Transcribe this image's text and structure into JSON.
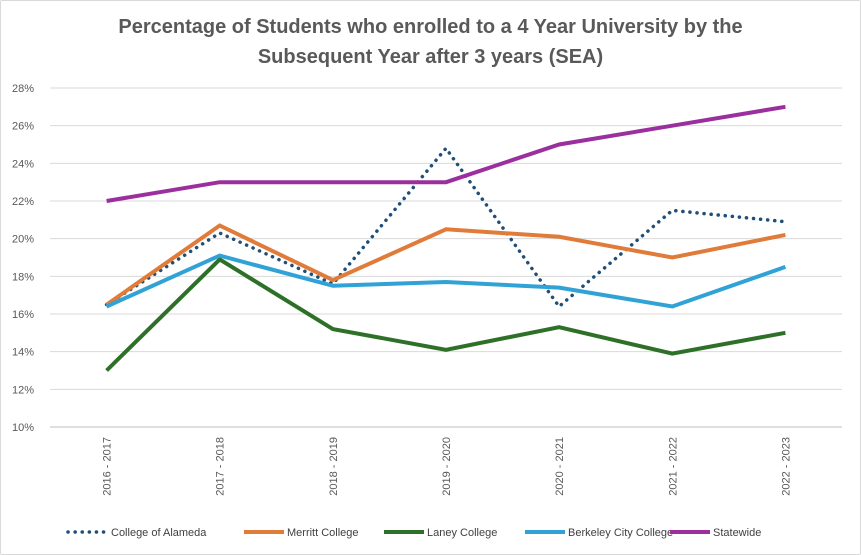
{
  "chart_data": {
    "type": "line",
    "title_line1": "Percentage of Students who enrolled to a 4 Year University  by the",
    "title_line2": "Subsequent Year after 3 years (SEA)",
    "categories": [
      "2016 - 2017",
      "2017 - 2018",
      "2018 - 2019",
      "2019 - 2020",
      "2020 - 2021",
      "2021 - 2022",
      "2022 - 2023"
    ],
    "ylim": [
      10,
      28
    ],
    "yticks": [
      10,
      12,
      14,
      16,
      18,
      20,
      22,
      24,
      26,
      28
    ],
    "ytick_suffix": "%",
    "grid": "horizontal",
    "legend": "bottom",
    "series": [
      {
        "name": "College of Alameda",
        "values": [
          16.5,
          20.3,
          17.6,
          24.8,
          16.4,
          21.5,
          20.9
        ],
        "color": "#1f4e79",
        "style": "dotted"
      },
      {
        "name": "Merritt College",
        "values": [
          16.5,
          20.7,
          17.8,
          20.5,
          20.1,
          19.0,
          20.2
        ],
        "color": "#e07b39",
        "style": "solid"
      },
      {
        "name": "Laney College",
        "values": [
          13.0,
          18.9,
          15.2,
          14.1,
          15.3,
          13.9,
          15.0
        ],
        "color": "#2e7028",
        "style": "solid"
      },
      {
        "name": "Berkeley City College",
        "values": [
          16.4,
          19.1,
          17.5,
          17.7,
          17.4,
          16.4,
          18.5
        ],
        "color": "#30a2d6",
        "style": "solid"
      },
      {
        "name": "Statewide",
        "values": [
          22.0,
          23.0,
          23.0,
          23.0,
          25.0,
          26.0,
          27.0
        ],
        "color": "#9b2f9e",
        "style": "solid"
      }
    ]
  }
}
